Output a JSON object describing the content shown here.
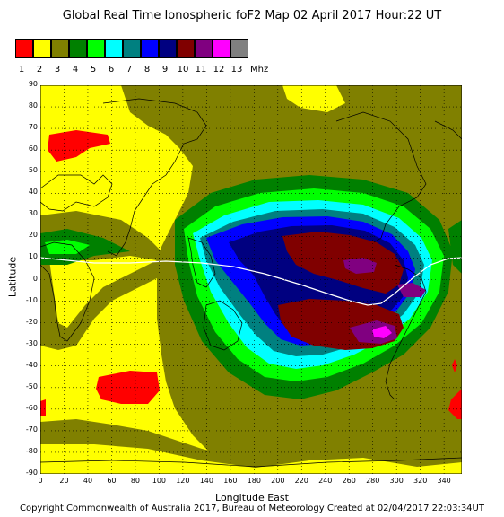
{
  "title": "Global Real Time Ionospheric foF2 Map   02 April 2017 Hour:22 UT",
  "legend": {
    "unit": "Mhz",
    "items": [
      {
        "label": "1",
        "color": "#ff0000"
      },
      {
        "label": "2",
        "color": "#ffff00"
      },
      {
        "label": "3",
        "color": "#808000"
      },
      {
        "label": "4",
        "color": "#008000"
      },
      {
        "label": "5",
        "color": "#00ff00"
      },
      {
        "label": "6",
        "color": "#00ffff"
      },
      {
        "label": "7",
        "color": "#008080"
      },
      {
        "label": "8",
        "color": "#0000ff"
      },
      {
        "label": "9",
        "color": "#000080"
      },
      {
        "label": "10",
        "color": "#800000"
      },
      {
        "label": "11",
        "color": "#800080"
      },
      {
        "label": "12",
        "color": "#ff00ff"
      },
      {
        "label": "13",
        "color": "#808080"
      }
    ]
  },
  "x_axis": {
    "label": "Longitude East",
    "ticks": [
      "0",
      "20",
      "40",
      "60",
      "80",
      "100",
      "120",
      "140",
      "160",
      "180",
      "200",
      "220",
      "240",
      "260",
      "280",
      "300",
      "320",
      "340"
    ]
  },
  "y_axis": {
    "label": "Latitude",
    "ticks": [
      "90",
      "80",
      "70",
      "60",
      "50",
      "40",
      "30",
      "20",
      "10",
      "0",
      "-10",
      "-20",
      "-30",
      "-40",
      "-50",
      "-60",
      "-70",
      "-80",
      "-90"
    ]
  },
  "footer": "Copyright Commonwealth of Australia 2017, Bureau of Meteorology    Created at 02/04/2017 22:03:34UT"
}
